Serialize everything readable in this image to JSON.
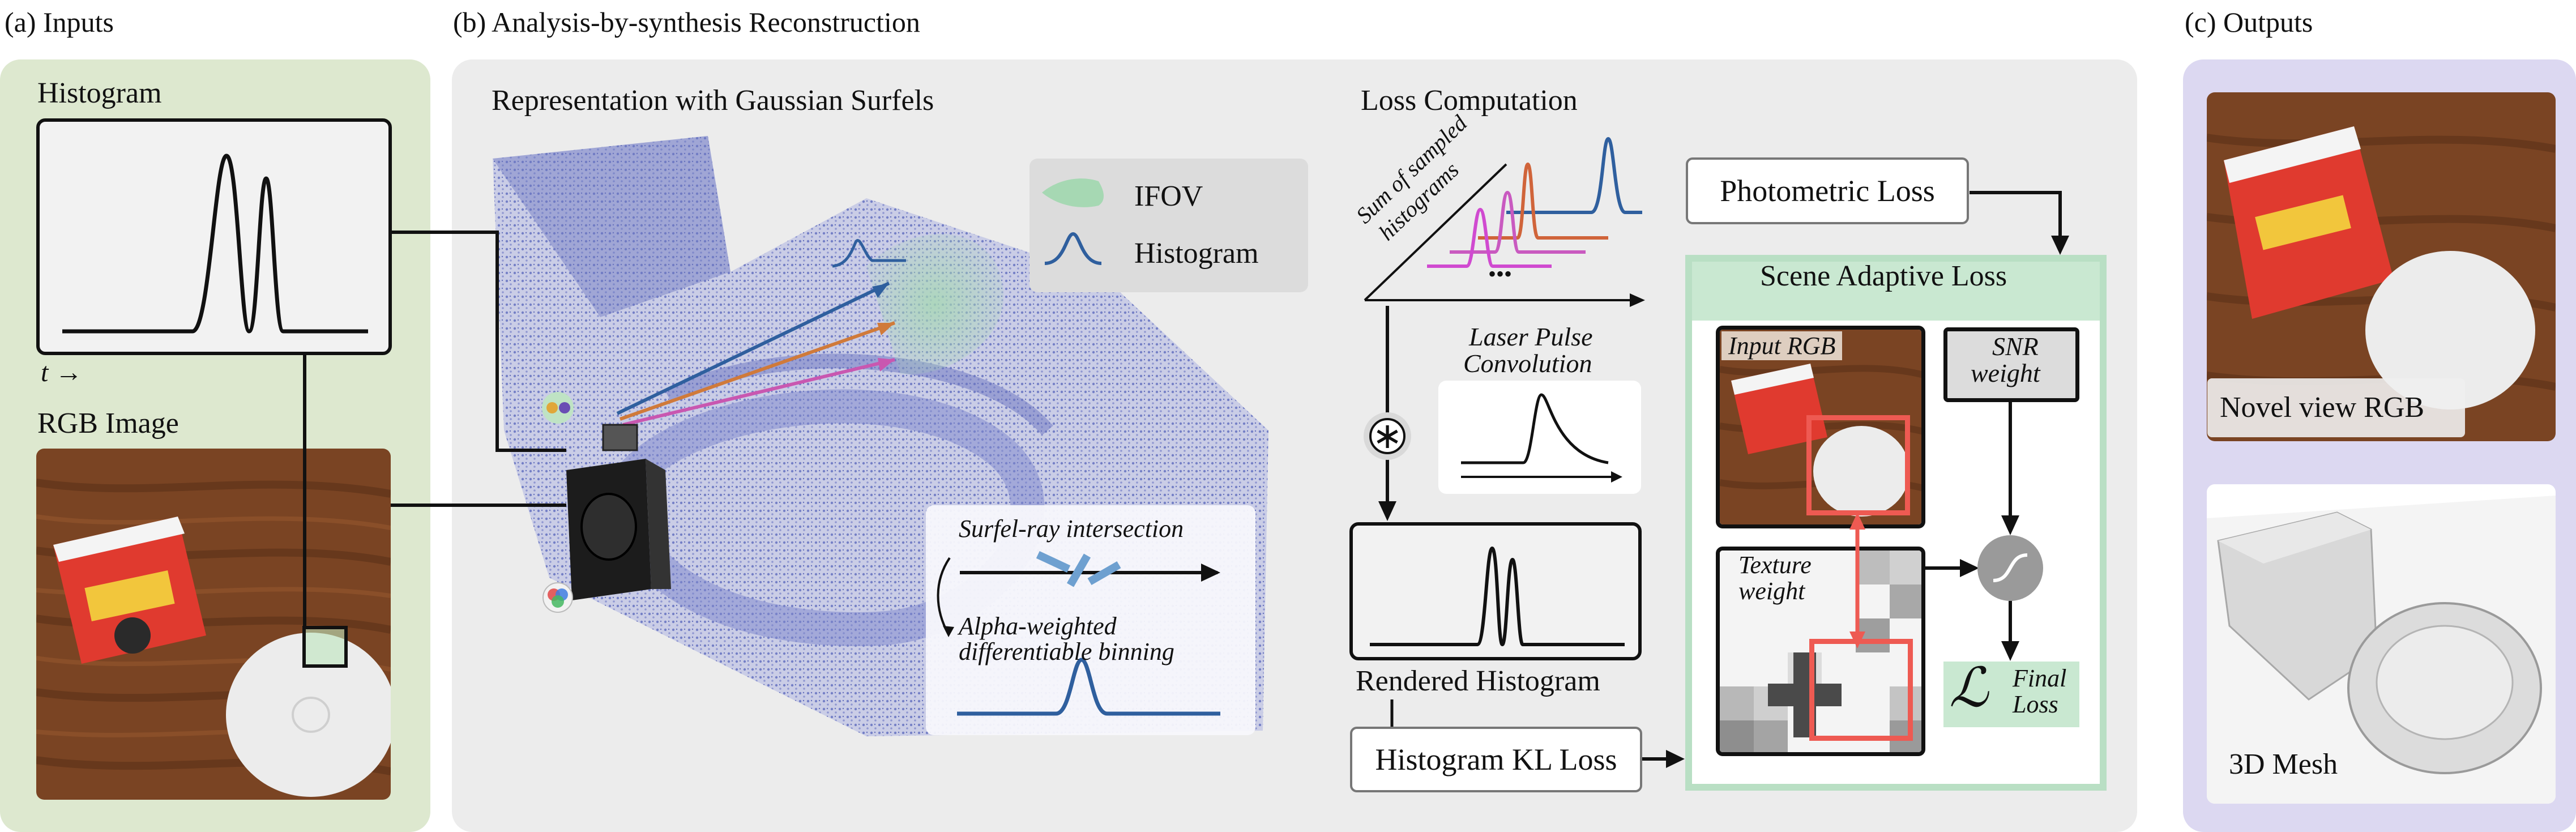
{
  "panels": {
    "inputs": {
      "title": "(a) Inputs",
      "histogram_label": "Histogram",
      "time_axis_label": "t →",
      "rgb_label": "RGB Image"
    },
    "reconstruction": {
      "title": "(b) Analysis-by-synthesis Reconstruction",
      "representation_label": "Representation with Gaussian Surfels",
      "legend": {
        "ifov": "IFOV",
        "histogram": "Histogram"
      },
      "inset": {
        "surfel_ray": "Surfel-ray intersection",
        "binning_line1": "Alpha-weighted",
        "binning_line2": "differentiable binning"
      },
      "loss_computation": {
        "title": "Loss Computation",
        "sum_label_line1": "Sum of sampled",
        "sum_label_line2": "histograms",
        "ellipsis": "•••",
        "laser_line1": "Laser Pulse",
        "laser_line2": "Convolution",
        "convolve_symbol": "∗",
        "rendered_histogram": "Rendered Histogram",
        "histogram_kl_loss": "Histogram KL Loss",
        "photometric_loss": "Photometric Loss",
        "scene_adaptive_loss": "Scene Adaptive Loss",
        "input_rgb": "Input RGB",
        "snr_line1": "SNR",
        "snr_line2": "weight",
        "texture_line1": "Texture",
        "texture_line2": "weight",
        "final_symbol": "ℒ",
        "final_line1": "Final",
        "final_line2": "Loss"
      }
    },
    "outputs": {
      "title": "(c) Outputs",
      "novel_view": "Novel view RGB",
      "mesh": "3D Mesh"
    }
  },
  "colors": {
    "inputs_bg": "#dde8cf",
    "recon_bg": "#ececec",
    "outputs_bg": "#dcd8f1",
    "adaptive_border": "#b9dfc4",
    "highlight_red": "#ee5a52",
    "point_cloud": "#7b86cc",
    "ray_blue": "#2f5f9e",
    "ray_orange": "#d07a3a",
    "ray_magenta": "#c957b0"
  }
}
